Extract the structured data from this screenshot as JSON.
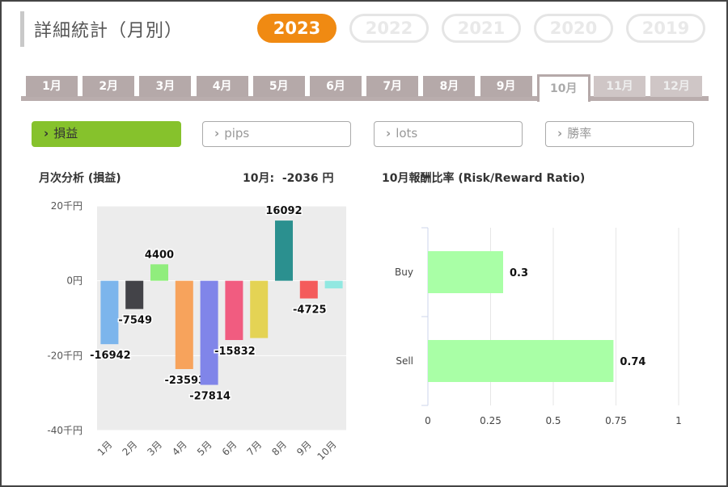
{
  "header": {
    "title": "詳細統計（月別）"
  },
  "years": [
    {
      "label": "2023",
      "active": true
    },
    {
      "label": "2022",
      "active": false
    },
    {
      "label": "2021",
      "active": false
    },
    {
      "label": "2020",
      "active": false
    },
    {
      "label": "2019",
      "active": false
    }
  ],
  "months": [
    {
      "label": "1月",
      "state": "normal"
    },
    {
      "label": "2月",
      "state": "normal"
    },
    {
      "label": "3月",
      "state": "normal"
    },
    {
      "label": "4月",
      "state": "normal"
    },
    {
      "label": "5月",
      "state": "normal"
    },
    {
      "label": "6月",
      "state": "normal"
    },
    {
      "label": "7月",
      "state": "normal"
    },
    {
      "label": "8月",
      "state": "normal"
    },
    {
      "label": "9月",
      "state": "normal"
    },
    {
      "label": "10月",
      "state": "active"
    },
    {
      "label": "11月",
      "state": "disabled"
    },
    {
      "label": "12月",
      "state": "disabled"
    }
  ],
  "subtabs": [
    {
      "label": "損益",
      "active": true
    },
    {
      "label": "pips",
      "active": false
    },
    {
      "label": "lots",
      "active": false
    },
    {
      "label": "勝率",
      "active": false
    }
  ],
  "monthly": {
    "heading": "月次分析 (損益)",
    "summary_label": "10月:",
    "summary_value": "-2036 円"
  },
  "ratio": {
    "heading": "10月報酬比率 (Risk/Reward Ratio)"
  },
  "chart_data": [
    {
      "type": "bar",
      "categories": [
        "1月",
        "2月",
        "3月",
        "4月",
        "5月",
        "6月",
        "7月",
        "8月",
        "9月",
        "10月"
      ],
      "values": [
        -16942,
        -7549,
        4400,
        -23593,
        -27814,
        -15832,
        -15300,
        16092,
        -4725,
        -2036
      ],
      "data_labels": [
        "-16942",
        "-7549",
        "4400",
        "-23593",
        "-27814",
        "-15832",
        "",
        "16092",
        "-4725",
        ""
      ],
      "colors": [
        "#7cb5ec",
        "#434348",
        "#90ed7d",
        "#f7a35c",
        "#8085e9",
        "#f15c80",
        "#e4d354",
        "#2b908f",
        "#f45b5b",
        "#91e8e1"
      ],
      "ylim": [
        -40000,
        20000
      ],
      "yticks": [
        20000,
        0,
        -20000,
        -40000
      ],
      "ytick_labels": [
        "20千円",
        "0円",
        "-20千円",
        "-40千円"
      ],
      "grid": true
    },
    {
      "type": "bar",
      "orientation": "horizontal",
      "categories": [
        "Buy",
        "Sell"
      ],
      "values": [
        0.3,
        0.74
      ],
      "data_labels": [
        "0.3",
        "0.74"
      ],
      "color": "#a9ffa6",
      "xlim": [
        0,
        1
      ],
      "xticks": [
        0,
        0.25,
        0.5,
        0.75,
        1
      ],
      "xtick_labels": [
        "0",
        "0.25",
        "0.5",
        "0.75",
        "1"
      ],
      "grid": true
    }
  ]
}
